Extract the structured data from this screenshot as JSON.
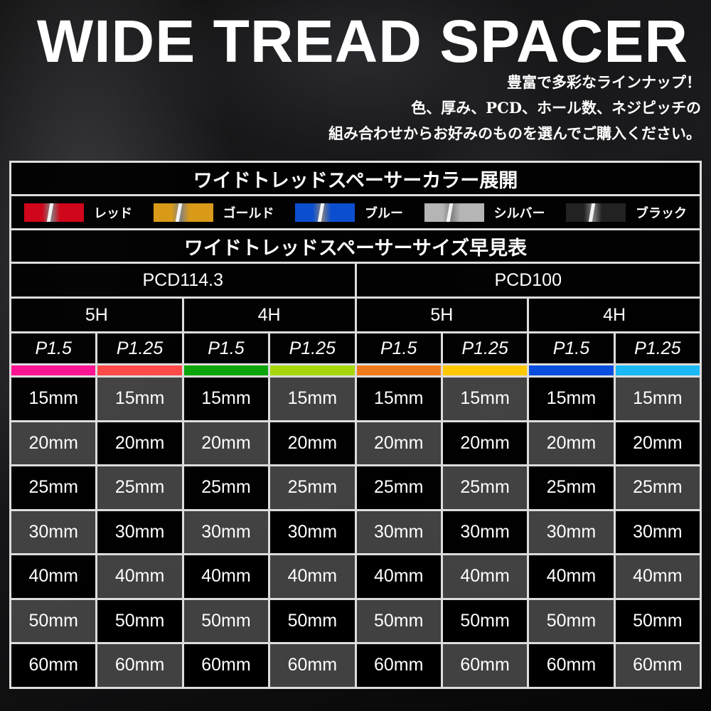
{
  "title": "WIDE TREAD SPACER",
  "subtitle": [
    "豊富で多彩なラインナップ！",
    "色、厚み、PCD、ホール数、ネジピッチの",
    "組み合わせからお好みのものを選んでご購入ください。"
  ],
  "color_section": {
    "title": "ワイドトレッドスペーサーカラー展開",
    "colors": [
      {
        "label": "レッド",
        "hex": "#d0061a"
      },
      {
        "label": "ゴールド",
        "hex": "#d99a1a"
      },
      {
        "label": "ブルー",
        "hex": "#0b4fd0"
      },
      {
        "label": "シルバー",
        "hex": "#b5b5b5"
      },
      {
        "label": "ブラック",
        "hex": "#222222"
      }
    ]
  },
  "size_section": {
    "title": "ワイドトレッドスペーサーサイズ早見表",
    "pcd": [
      "PCD114.3",
      "PCD100"
    ],
    "holes": [
      "5H",
      "4H",
      "5H",
      "4H"
    ],
    "pitch": [
      "P1.5",
      "P1.25",
      "P1.5",
      "P1.25",
      "P1.5",
      "P1.25",
      "P1.5",
      "P1.25"
    ],
    "strip_colors": [
      "#ff1493",
      "#ff4a4a",
      "#0aa50a",
      "#a8d80a",
      "#f07a1a",
      "#ffc800",
      "#0a4ee0",
      "#1ab8f5"
    ],
    "sizes": [
      "15mm",
      "20mm",
      "25mm",
      "30mm",
      "40mm",
      "50mm",
      "60mm"
    ]
  }
}
